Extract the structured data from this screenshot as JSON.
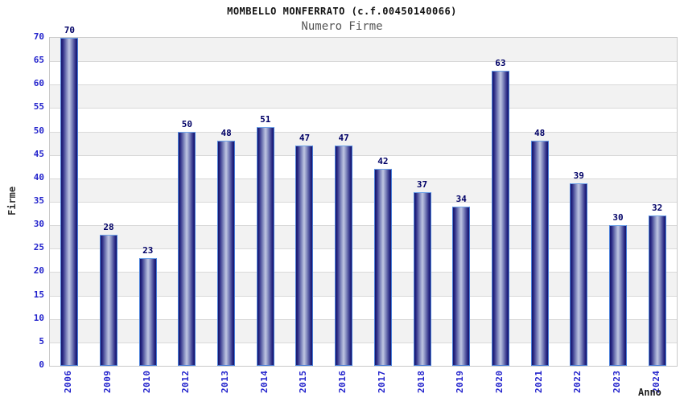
{
  "chart_data": {
    "type": "bar",
    "title": "MOMBELLO MONFERRATO (c.f.00450140066)",
    "subtitle": "Numero Firme",
    "xlabel": "Anno",
    "ylabel": "Firme",
    "categories": [
      "2006",
      "2009",
      "2010",
      "2012",
      "2013",
      "2014",
      "2015",
      "2016",
      "2017",
      "2018",
      "2019",
      "2020",
      "2021",
      "2022",
      "2023",
      "2024"
    ],
    "values": [
      70,
      28,
      23,
      50,
      48,
      51,
      47,
      47,
      42,
      37,
      34,
      63,
      48,
      39,
      30,
      32
    ],
    "ylim": [
      0,
      70
    ],
    "ytick_step": 5,
    "grid": "horizontal-bands",
    "legend": "none",
    "colors": {
      "tick_label": "#2222cc",
      "value_label": "#000066",
      "bar_edge_dark": "#14146a",
      "bar_mid": "#8b93c4",
      "bar_center_light": "#c0c6e2",
      "bar_border": "#4a7fd9",
      "bar_border_top": "#6fa3e8",
      "band_gray": "#f2f2f2",
      "band_white": "#ffffff",
      "grid_line": "#d9d9d9",
      "title_color": "#111111",
      "subtitle_color": "#555555",
      "axis_title_color": "#333333"
    }
  }
}
